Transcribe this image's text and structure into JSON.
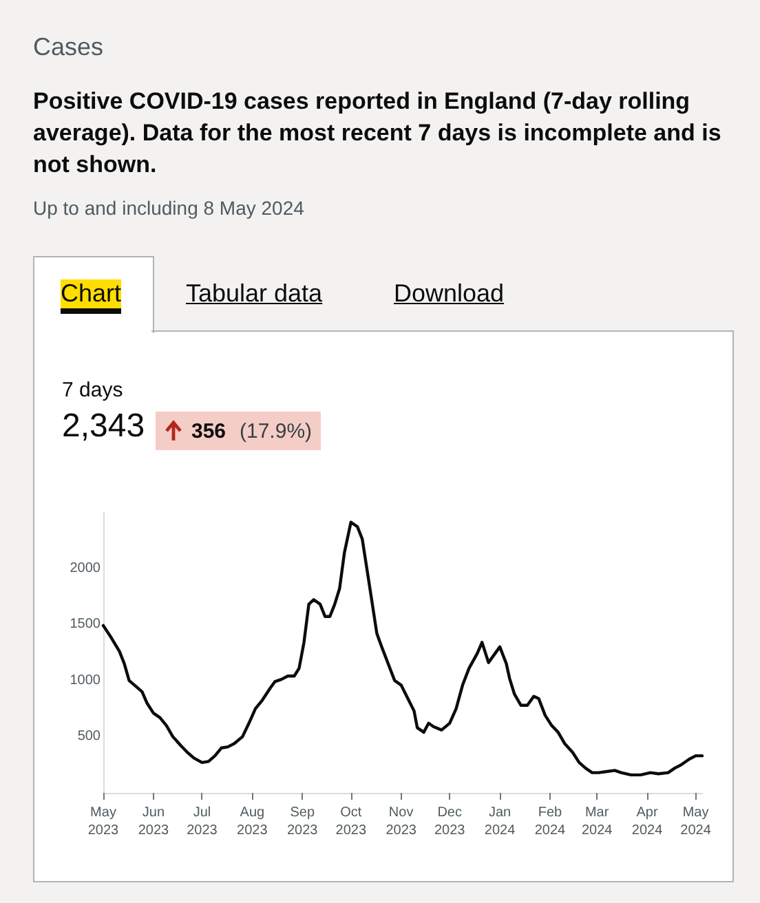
{
  "chart_data": {
    "type": "line",
    "title": "Positive COVID-19 cases reported in England (7-day rolling average). Data for the most recent 7 days is incomplete and is not shown.",
    "subtitle": "Up to and including 8 May 2024",
    "annotations": [
      "Cases",
      "Chart",
      "Tabular data",
      "Download",
      "7 days",
      "2,343",
      "356",
      "(17.9%)"
    ],
    "x": [
      "2023-05-01",
      "2023-05-06",
      "2023-05-11",
      "2023-05-14",
      "2023-05-17",
      "2023-05-21",
      "2023-05-25",
      "2023-05-28",
      "2023-06-01",
      "2023-06-05",
      "2023-06-09",
      "2023-06-13",
      "2023-06-18",
      "2023-06-22",
      "2023-06-26",
      "2023-07-01",
      "2023-07-05",
      "2023-07-09",
      "2023-07-13",
      "2023-07-17",
      "2023-07-21",
      "2023-07-26",
      "2023-07-30",
      "2023-08-03",
      "2023-08-07",
      "2023-08-12",
      "2023-08-15",
      "2023-08-19",
      "2023-08-23",
      "2023-08-27",
      "2023-08-30",
      "2023-09-02",
      "2023-09-05",
      "2023-09-08",
      "2023-09-12",
      "2023-09-15",
      "2023-09-18",
      "2023-09-21",
      "2023-09-24",
      "2023-09-27",
      "2023-10-01",
      "2023-10-05",
      "2023-10-08",
      "2023-10-12",
      "2023-10-17",
      "2023-10-20",
      "2023-10-24",
      "2023-10-28",
      "2023-11-01",
      "2023-11-09",
      "2023-11-11",
      "2023-11-15",
      "2023-11-18",
      "2023-11-21",
      "2023-11-26",
      "2023-12-01",
      "2023-12-05",
      "2023-12-09",
      "2023-12-13",
      "2023-12-18",
      "2023-12-21",
      "2023-12-25",
      "2023-12-29",
      "2024-01-01",
      "2024-01-05",
      "2024-01-07",
      "2024-01-10",
      "2024-01-14",
      "2024-01-18",
      "2024-01-22",
      "2024-01-25",
      "2024-01-29",
      "2024-02-02",
      "2024-02-06",
      "2024-02-10",
      "2024-02-15",
      "2024-02-19",
      "2024-02-23",
      "2024-02-27",
      "2024-03-02",
      "2024-03-07",
      "2024-03-12",
      "2024-03-16",
      "2024-03-22",
      "2024-03-28",
      "2024-04-03",
      "2024-04-08",
      "2024-04-14",
      "2024-04-18",
      "2024-04-22",
      "2024-04-27",
      "2024-05-01",
      "2024-05-05"
    ],
    "series": [
      {
        "color": "#0b0c0c",
        "values": [
          1490,
          1380,
          1260,
          1150,
          1000,
          950,
          900,
          800,
          710,
          670,
          600,
          500,
          420,
          360,
          310,
          270,
          280,
          330,
          400,
          410,
          440,
          500,
          620,
          750,
          820,
          930,
          990,
          1010,
          1040,
          1040,
          1110,
          1340,
          1680,
          1720,
          1680,
          1570,
          1570,
          1680,
          1820,
          2140,
          2410,
          2370,
          2260,
          1890,
          1420,
          1300,
          1150,
          1000,
          960,
          730,
          580,
          540,
          620,
          590,
          560,
          620,
          750,
          960,
          1110,
          1240,
          1340,
          1160,
          1240,
          1300,
          1150,
          1020,
          880,
          780,
          780,
          860,
          840,
          690,
          600,
          540,
          440,
          360,
          270,
          220,
          180,
          180,
          190,
          200,
          180,
          160,
          160,
          180,
          170,
          180,
          220,
          250,
          300,
          330,
          330
        ]
      }
    ],
    "xticks": [
      {
        "value": "2023-05-01",
        "label": "May 2023"
      },
      {
        "value": "2023-06-01",
        "label": "Jun 2023"
      },
      {
        "value": "2023-07-01",
        "label": "Jul 2023"
      },
      {
        "value": "2023-08-01",
        "label": "Aug 2023"
      },
      {
        "value": "2023-09-01",
        "label": "Sep 2023"
      },
      {
        "value": "2023-10-01",
        "label": "Oct 2023"
      },
      {
        "value": "2023-11-01",
        "label": "Nov 2023"
      },
      {
        "value": "2023-12-01",
        "label": "Dec 2023"
      },
      {
        "value": "2024-01-01",
        "label": "Jan 2024"
      },
      {
        "value": "2024-02-01",
        "label": "Feb 2024"
      },
      {
        "value": "2024-03-01",
        "label": "Mar 2024"
      },
      {
        "value": "2024-04-01",
        "label": "Apr 2024"
      },
      {
        "value": "2024-05-01",
        "label": "May 2024"
      }
    ],
    "xlim": [
      "2023-05-01",
      "2024-05-05"
    ],
    "ylim": [
      0,
      2500
    ],
    "yticks": [
      500,
      1000,
      1500,
      2000
    ],
    "grid": false,
    "marker": "none",
    "line_style": "solid"
  }
}
